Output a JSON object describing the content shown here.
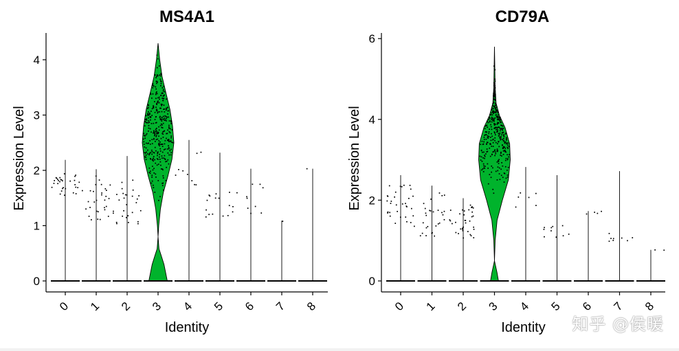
{
  "colors": {
    "violin_fill": "#00b32c",
    "point": "#000000",
    "axis": "#000000"
  },
  "watermark": "知乎 @侯暖",
  "chart_data": [
    {
      "type": "violin",
      "title": "MS4A1",
      "xlabel": "Identity",
      "ylabel": "Expression Level",
      "categories": [
        "0",
        "1",
        "2",
        "3",
        "4",
        "5",
        "6",
        "7",
        "8"
      ],
      "highlight_category": "3",
      "ylim": [
        0,
        4.4
      ],
      "yticks": [
        0,
        1,
        2,
        3,
        4
      ],
      "max_values": [
        2.19,
        2.02,
        2.26,
        4.3,
        2.55,
        2.32,
        2.03,
        1.09,
        2.03
      ],
      "expressing_range": [
        [
          1.5,
          1.95
        ],
        [
          1.1,
          1.9
        ],
        [
          0.95,
          1.85
        ],
        [
          1.3,
          4.2
        ],
        [
          1.7,
          2.35
        ],
        [
          1.1,
          1.65
        ],
        [
          1.2,
          1.95
        ],
        [
          1.08,
          1.08
        ],
        [
          2.03,
          2.03
        ]
      ],
      "expressing_counts": [
        30,
        30,
        28,
        360,
        9,
        16,
        10,
        1,
        1
      ],
      "violin_profile": [
        {
          "y": 0,
          "w": 0.28
        },
        {
          "y": 0.12,
          "w": 0.24
        },
        {
          "y": 0.3,
          "w": 0.18
        },
        {
          "y": 0.45,
          "w": 0.1
        },
        {
          "y": 0.58,
          "w": 0.03
        },
        {
          "y": 0.8,
          "w": 0.0
        },
        {
          "y": 1.0,
          "w": 0.02
        },
        {
          "y": 1.3,
          "w": 0.07
        },
        {
          "y": 1.6,
          "w": 0.16
        },
        {
          "y": 1.9,
          "w": 0.3
        },
        {
          "y": 2.2,
          "w": 0.42
        },
        {
          "y": 2.5,
          "w": 0.48
        },
        {
          "y": 2.8,
          "w": 0.44
        },
        {
          "y": 3.1,
          "w": 0.36
        },
        {
          "y": 3.4,
          "w": 0.24
        },
        {
          "y": 3.7,
          "w": 0.12
        },
        {
          "y": 4.0,
          "w": 0.05
        },
        {
          "y": 4.3,
          "w": 0.0
        }
      ]
    },
    {
      "type": "violin",
      "title": "CD79A",
      "xlabel": "Identity",
      "ylabel": "Expression Level",
      "categories": [
        "0",
        "1",
        "2",
        "3",
        "4",
        "5",
        "6",
        "7",
        "8"
      ],
      "highlight_category": "3",
      "ylim": [
        0,
        6.1
      ],
      "yticks": [
        0,
        2,
        4,
        6
      ],
      "max_values": [
        2.62,
        2.36,
        2.05,
        5.82,
        2.82,
        2.62,
        1.73,
        2.72,
        0.77
      ],
      "expressing_range": [
        [
          1.3,
          2.4
        ],
        [
          1.1,
          2.2
        ],
        [
          1.05,
          1.9
        ],
        [
          1.8,
          5.6
        ],
        [
          1.7,
          2.2
        ],
        [
          1.05,
          1.45
        ],
        [
          1.65,
          1.73
        ],
        [
          0.95,
          1.2
        ],
        [
          0.75,
          0.77
        ]
      ],
      "expressing_counts": [
        34,
        28,
        36,
        360,
        6,
        10,
        4,
        8,
        2
      ],
      "violin_profile": [
        {
          "y": 0,
          "w": 0.12
        },
        {
          "y": 0.2,
          "w": 0.08
        },
        {
          "y": 0.5,
          "w": 0.0
        },
        {
          "y": 1.0,
          "w": 0.02
        },
        {
          "y": 1.5,
          "w": 0.08
        },
        {
          "y": 2.0,
          "w": 0.24
        },
        {
          "y": 2.5,
          "w": 0.42
        },
        {
          "y": 3.0,
          "w": 0.48
        },
        {
          "y": 3.4,
          "w": 0.46
        },
        {
          "y": 3.8,
          "w": 0.32
        },
        {
          "y": 4.1,
          "w": 0.15
        },
        {
          "y": 4.4,
          "w": 0.05
        },
        {
          "y": 4.8,
          "w": 0.02
        },
        {
          "y": 5.3,
          "w": 0.01
        },
        {
          "y": 5.8,
          "w": 0.0
        }
      ]
    }
  ]
}
